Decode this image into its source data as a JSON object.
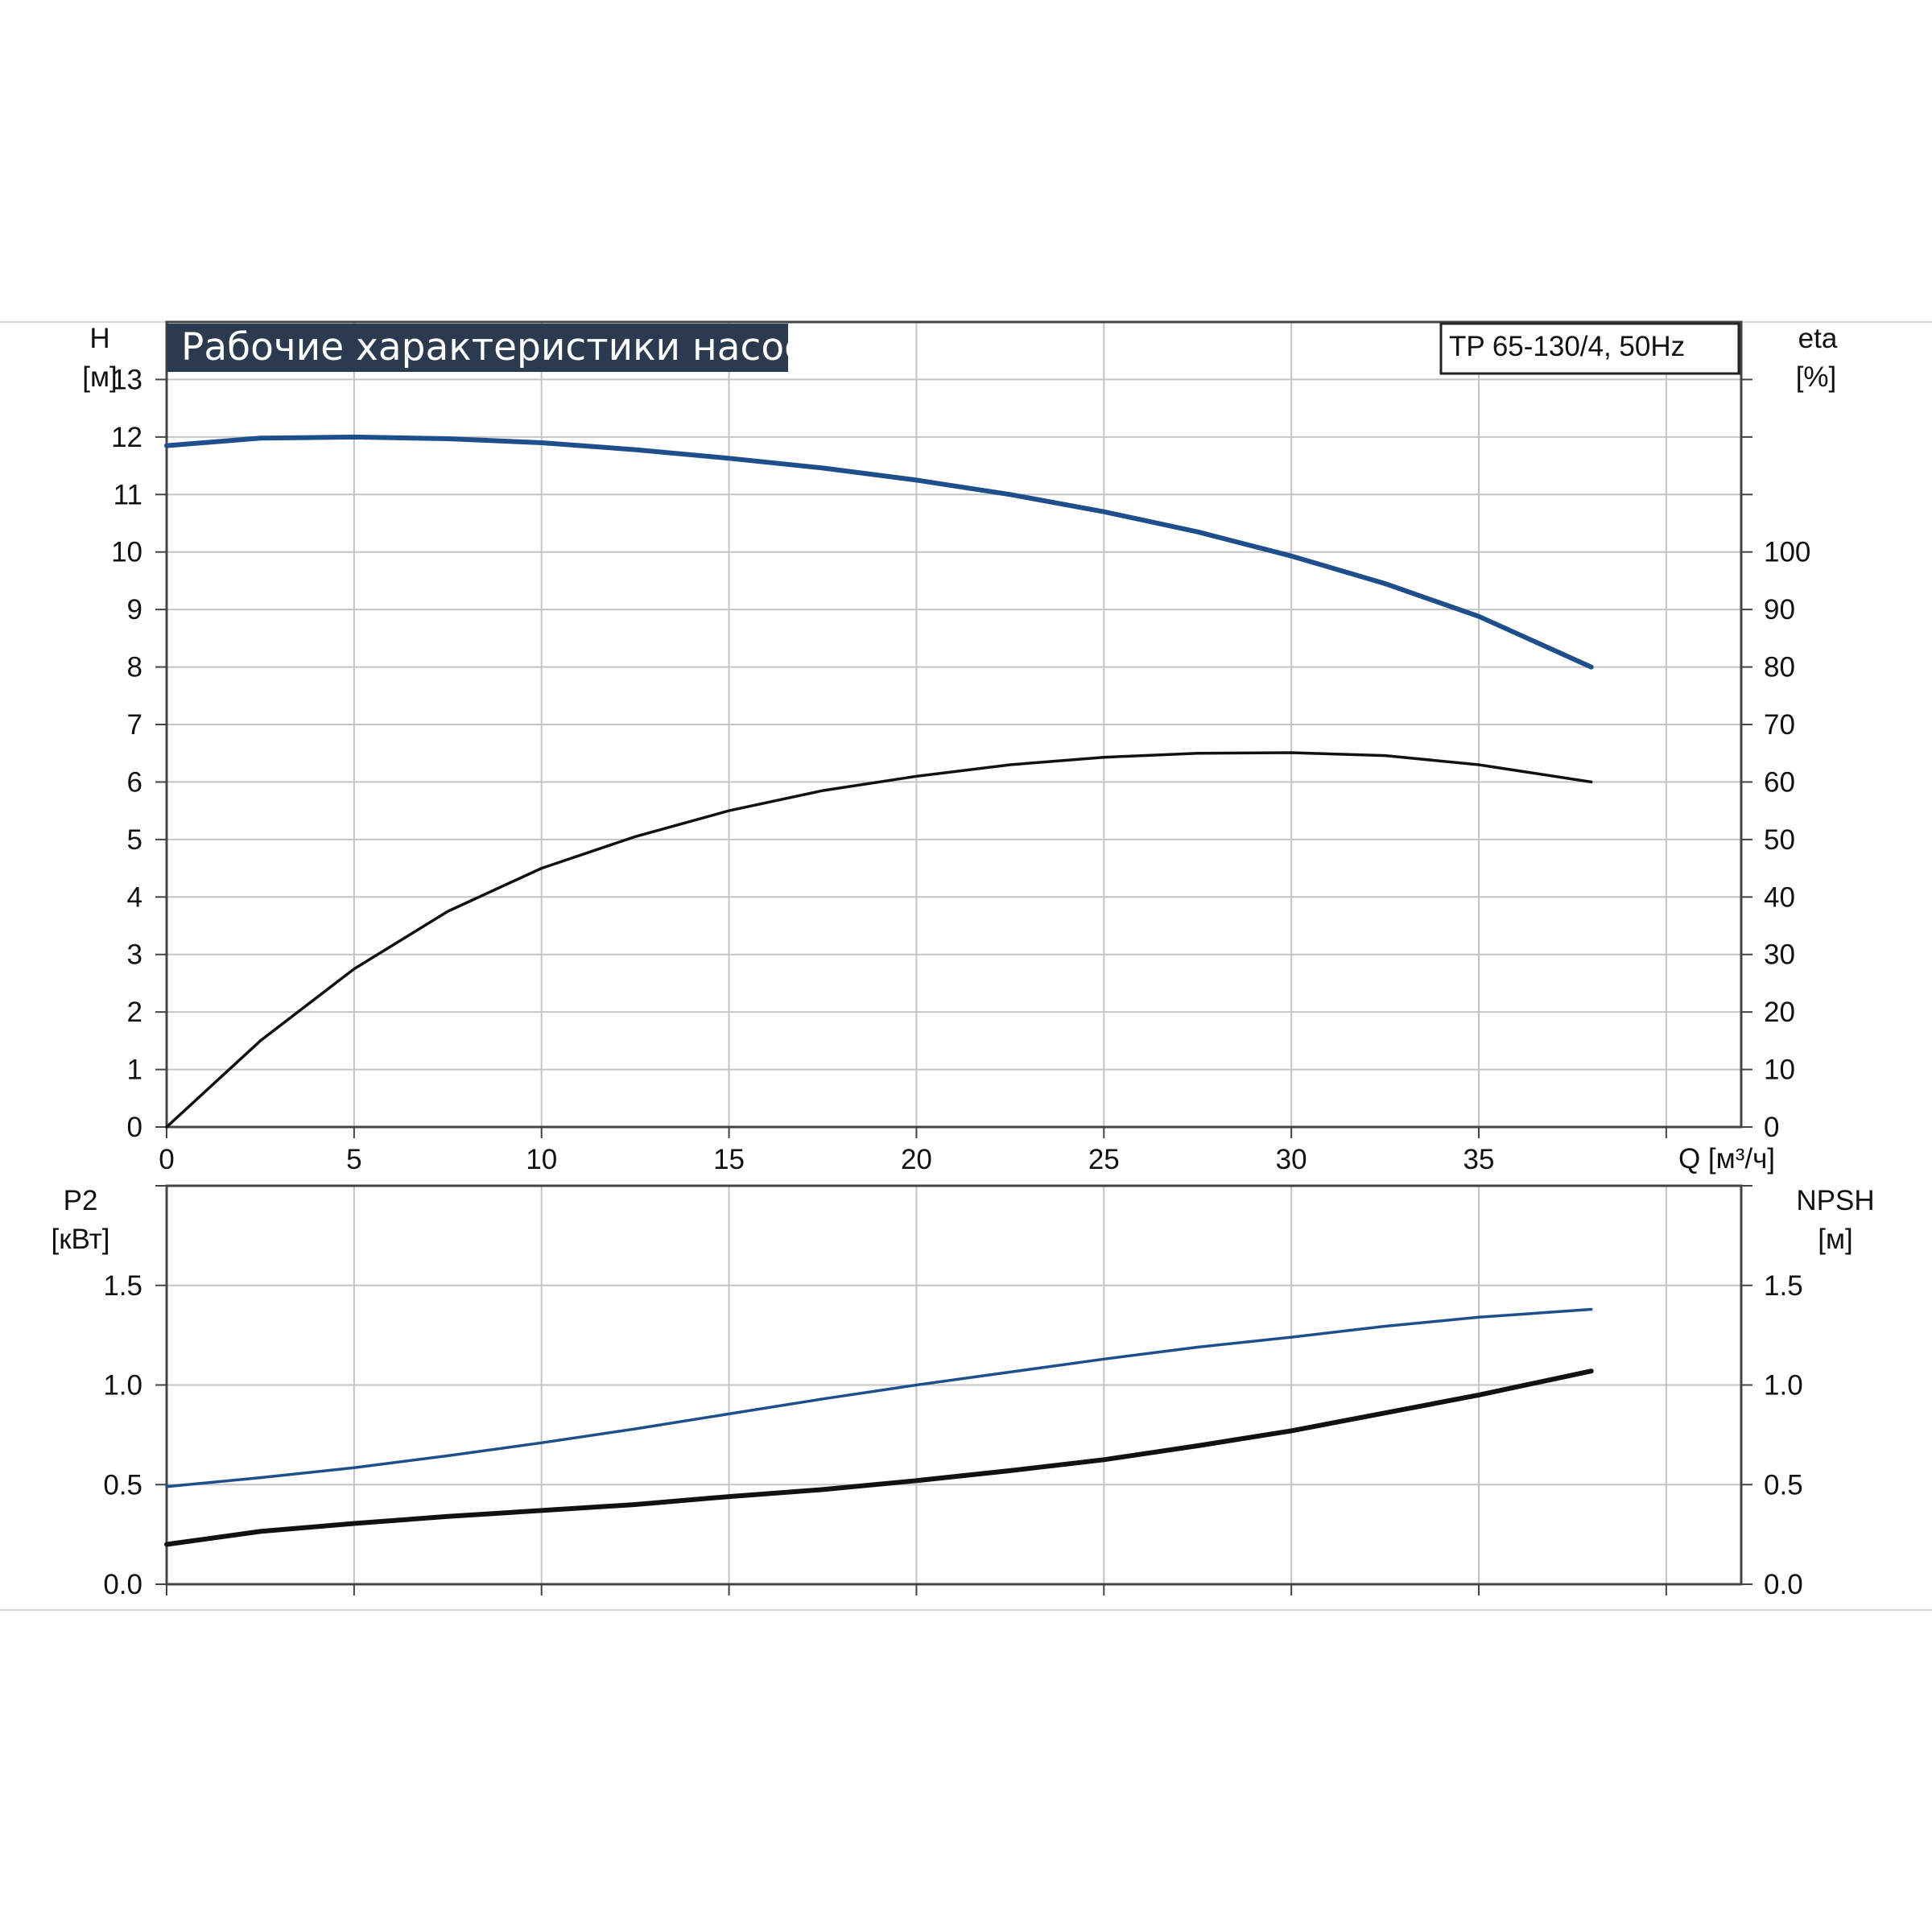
{
  "title": "Рабочие характеристики насоса",
  "model": "TP 65-130/4, 50Hz",
  "colors": {
    "title_bg": "#2b3a4e",
    "blue_curve": "#1f4e8c",
    "black_curve": "#111111",
    "grid": "#c4c4c4"
  },
  "axes": {
    "left_top_name": "H",
    "left_top_unit": "[м]",
    "right_top_name": "eta",
    "right_top_unit": "[%]",
    "x_unit": "Q [м³/ч]",
    "left_bottom_name": "P2",
    "left_bottom_unit": "[кВт]",
    "right_bottom_name": "NPSH",
    "right_bottom_unit": "[м]"
  },
  "chart_data": [
    {
      "type": "line",
      "panel": "top",
      "x_label": "Q [м³/ч]",
      "xlim": [
        0,
        42
      ],
      "x_ticks": [
        0,
        5,
        10,
        15,
        20,
        25,
        30,
        35
      ],
      "y_left": {
        "label": "H [м]",
        "lim": [
          0,
          14
        ],
        "ticks": [
          0,
          1,
          2,
          3,
          4,
          5,
          6,
          7,
          8,
          9,
          10,
          11,
          12,
          13
        ]
      },
      "y_right": {
        "label": "eta [%]",
        "lim": [
          0,
          140
        ],
        "ticks": [
          0,
          10,
          20,
          30,
          40,
          50,
          60,
          70,
          80,
          90,
          100
        ]
      },
      "grid": true,
      "series": [
        {
          "name": "H",
          "axis": "left",
          "color": "#1f4e8c",
          "x": [
            0,
            2.5,
            5,
            7.5,
            10,
            12.5,
            15,
            17.5,
            20,
            22.5,
            25,
            27.5,
            30,
            32.5,
            35,
            38
          ],
          "y": [
            11.85,
            11.98,
            12.0,
            11.97,
            11.9,
            11.78,
            11.63,
            11.46,
            11.25,
            11.0,
            10.7,
            10.35,
            9.93,
            9.45,
            8.88,
            8.0
          ]
        },
        {
          "name": "eta",
          "axis": "right",
          "color": "#111111",
          "x": [
            0,
            2.5,
            5,
            7.5,
            10,
            12.5,
            15,
            17.5,
            20,
            22.5,
            25,
            27.5,
            30,
            32.5,
            35,
            38
          ],
          "y": [
            0,
            15,
            27.5,
            37.5,
            45,
            50.5,
            55,
            58.5,
            61,
            63,
            64.3,
            65,
            65.1,
            64.6,
            63,
            60
          ]
        }
      ]
    },
    {
      "type": "line",
      "panel": "bottom",
      "xlim": [
        0,
        42
      ],
      "x_ticks": [
        0,
        5,
        10,
        15,
        20,
        25,
        30,
        35
      ],
      "y_left": {
        "label": "P2 [кВт]",
        "lim": [
          0,
          2.0
        ],
        "ticks": [
          0.0,
          0.5,
          1.0,
          1.5
        ]
      },
      "y_right": {
        "label": "NPSH [м]",
        "lim": [
          0,
          2.0
        ],
        "ticks": [
          0.0,
          0.5,
          1.0,
          1.5
        ]
      },
      "grid": true,
      "series": [
        {
          "name": "P2",
          "axis": "left",
          "color": "#1f4e8c",
          "x": [
            0,
            2.5,
            5,
            7.5,
            10,
            12.5,
            15,
            17.5,
            20,
            22.5,
            25,
            27.5,
            30,
            32.5,
            35,
            38
          ],
          "y": [
            0.49,
            0.535,
            0.585,
            0.645,
            0.71,
            0.78,
            0.855,
            0.93,
            1.0,
            1.065,
            1.13,
            1.19,
            1.24,
            1.295,
            1.34,
            1.38
          ]
        },
        {
          "name": "NPSH",
          "axis": "right",
          "color": "#111111",
          "x": [
            0,
            2.5,
            5,
            7.5,
            10,
            12.5,
            15,
            17.5,
            20,
            22.5,
            25,
            27.5,
            30,
            32.5,
            35,
            38
          ],
          "y": [
            0.2,
            0.265,
            0.305,
            0.34,
            0.37,
            0.4,
            0.44,
            0.475,
            0.52,
            0.57,
            0.625,
            0.695,
            0.77,
            0.86,
            0.95,
            1.07
          ]
        }
      ]
    }
  ]
}
